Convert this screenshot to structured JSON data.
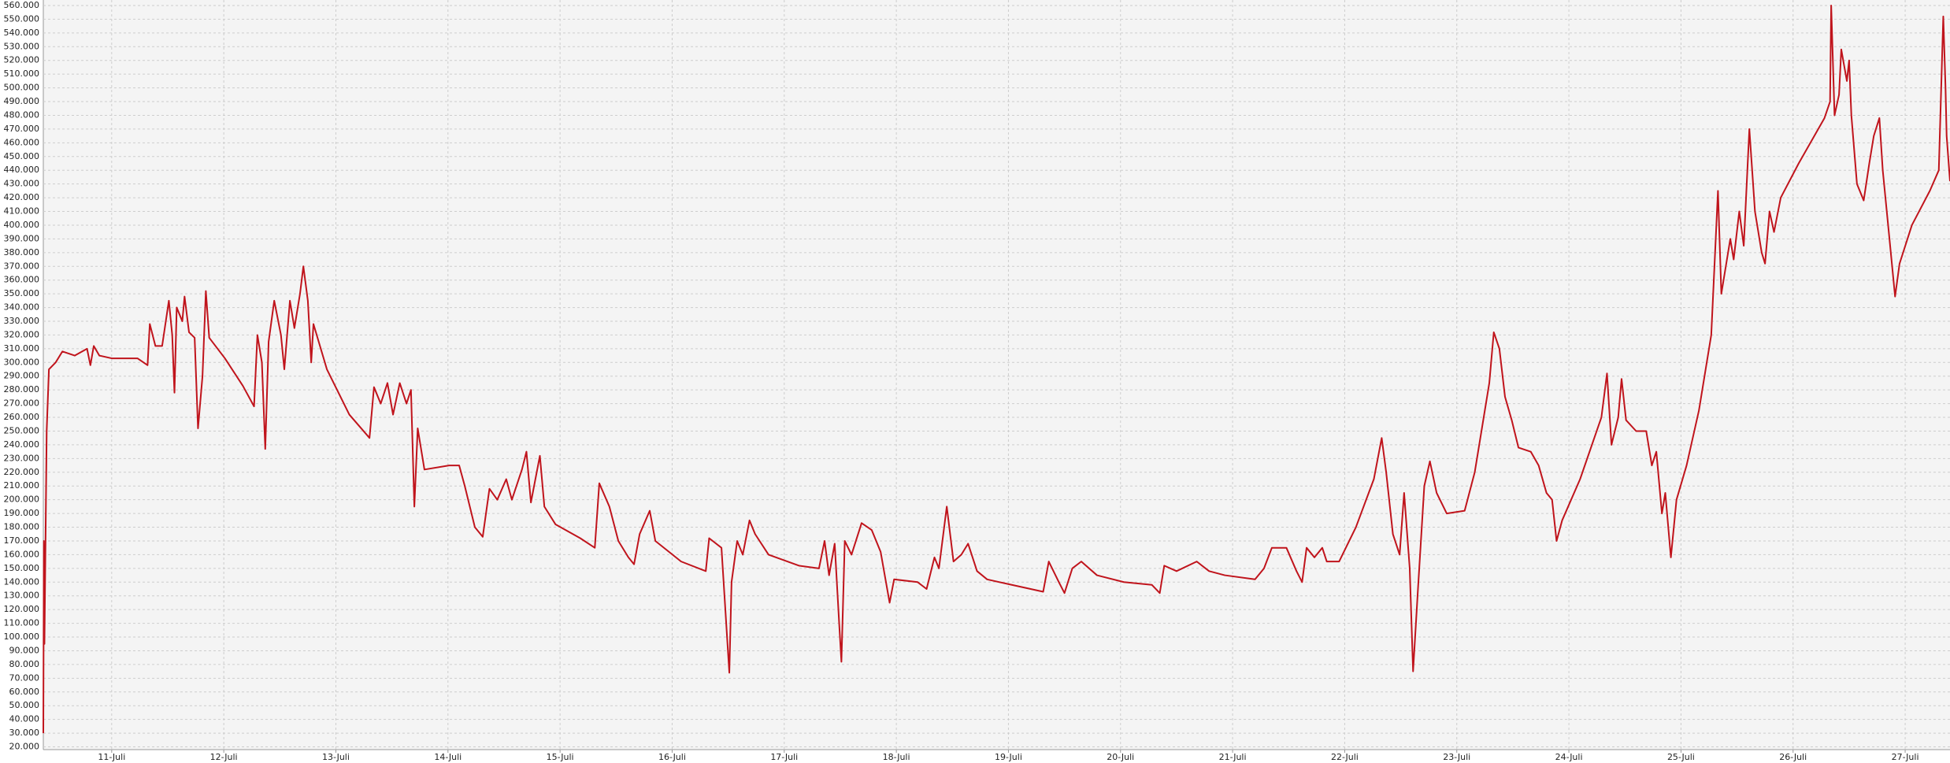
{
  "chart_data": {
    "type": "line",
    "color": "#c0141c",
    "grid": true,
    "xlim": [
      10.39,
      27.4
    ],
    "ylim": [
      18000,
      564000
    ],
    "xticks": [
      {
        "value": 11,
        "label": "11-Juli"
      },
      {
        "value": 12,
        "label": "12-Juli"
      },
      {
        "value": 13,
        "label": "13-Juli"
      },
      {
        "value": 14,
        "label": "14-Juli"
      },
      {
        "value": 15,
        "label": "15-Juli"
      },
      {
        "value": 16,
        "label": "16-Juli"
      },
      {
        "value": 17,
        "label": "17-Juli"
      },
      {
        "value": 18,
        "label": "18-Juli"
      },
      {
        "value": 19,
        "label": "19-Juli"
      },
      {
        "value": 20,
        "label": "20-Juli"
      },
      {
        "value": 21,
        "label": "21-Juli"
      },
      {
        "value": 22,
        "label": "22-Juli"
      },
      {
        "value": 23,
        "label": "23-Juli"
      },
      {
        "value": 24,
        "label": "24-Juli"
      },
      {
        "value": 25,
        "label": "25-Juli"
      },
      {
        "value": 26,
        "label": "26-Juli"
      },
      {
        "value": 27,
        "label": "27-Juli"
      }
    ],
    "yticks": [
      {
        "value": 20000,
        "label": "20.000"
      },
      {
        "value": 30000,
        "label": "30.000"
      },
      {
        "value": 40000,
        "label": "40.000"
      },
      {
        "value": 50000,
        "label": "50.000"
      },
      {
        "value": 60000,
        "label": "60.000"
      },
      {
        "value": 70000,
        "label": "70.000"
      },
      {
        "value": 80000,
        "label": "80.000"
      },
      {
        "value": 90000,
        "label": "90.000"
      },
      {
        "value": 100000,
        "label": "100.000"
      },
      {
        "value": 110000,
        "label": "110.000"
      },
      {
        "value": 120000,
        "label": "120.000"
      },
      {
        "value": 130000,
        "label": "130.000"
      },
      {
        "value": 140000,
        "label": "140.000"
      },
      {
        "value": 150000,
        "label": "150.000"
      },
      {
        "value": 160000,
        "label": "160.000"
      },
      {
        "value": 170000,
        "label": "170.000"
      },
      {
        "value": 180000,
        "label": "180.000"
      },
      {
        "value": 190000,
        "label": "190.000"
      },
      {
        "value": 200000,
        "label": "200.000"
      },
      {
        "value": 210000,
        "label": "210.000"
      },
      {
        "value": 220000,
        "label": "220.000"
      },
      {
        "value": 230000,
        "label": "230.000"
      },
      {
        "value": 240000,
        "label": "240.000"
      },
      {
        "value": 250000,
        "label": "250.000"
      },
      {
        "value": 260000,
        "label": "260.000"
      },
      {
        "value": 270000,
        "label": "270.000"
      },
      {
        "value": 280000,
        "label": "280.000"
      },
      {
        "value": 290000,
        "label": "290.000"
      },
      {
        "value": 300000,
        "label": "300.000"
      },
      {
        "value": 310000,
        "label": "310.000"
      },
      {
        "value": 320000,
        "label": "320.000"
      },
      {
        "value": 330000,
        "label": "330.000"
      },
      {
        "value": 340000,
        "label": "340.000"
      },
      {
        "value": 350000,
        "label": "350.000"
      },
      {
        "value": 360000,
        "label": "360.000"
      },
      {
        "value": 370000,
        "label": "370.000"
      },
      {
        "value": 380000,
        "label": "380.000"
      },
      {
        "value": 390000,
        "label": "390.000"
      },
      {
        "value": 400000,
        "label": "400.000"
      },
      {
        "value": 410000,
        "label": "410.000"
      },
      {
        "value": 420000,
        "label": "420.000"
      },
      {
        "value": 430000,
        "label": "430.000"
      },
      {
        "value": 440000,
        "label": "440.000"
      },
      {
        "value": 450000,
        "label": "450.000"
      },
      {
        "value": 460000,
        "label": "460.000"
      },
      {
        "value": 470000,
        "label": "470.000"
      },
      {
        "value": 480000,
        "label": "480.000"
      },
      {
        "value": 490000,
        "label": "490.000"
      },
      {
        "value": 500000,
        "label": "500.000"
      },
      {
        "value": 510000,
        "label": "510.000"
      },
      {
        "value": 520000,
        "label": "520.000"
      },
      {
        "value": 530000,
        "label": "530.000"
      },
      {
        "value": 540000,
        "label": "540.000"
      },
      {
        "value": 550000,
        "label": "550.000"
      },
      {
        "value": 560000,
        "label": "560.000"
      }
    ],
    "x": [
      10.39,
      10.395,
      10.4,
      10.42,
      10.44,
      10.5,
      10.56,
      10.67,
      10.78,
      10.81,
      10.84,
      10.89,
      11.0,
      11.23,
      11.32,
      11.34,
      11.39,
      11.45,
      11.51,
      11.54,
      11.56,
      11.58,
      11.63,
      11.65,
      11.69,
      11.74,
      11.77,
      11.81,
      11.84,
      11.87,
      12.01,
      12.17,
      12.27,
      12.3,
      12.34,
      12.37,
      12.4,
      12.45,
      12.51,
      12.54,
      12.59,
      12.63,
      12.68,
      12.71,
      12.75,
      12.78,
      12.8,
      12.92,
      13.12,
      13.3,
      13.34,
      13.4,
      13.46,
      13.51,
      13.57,
      13.63,
      13.67,
      13.7,
      13.73,
      13.79,
      14.01,
      14.1,
      14.15,
      14.24,
      14.31,
      14.37,
      14.44,
      14.52,
      14.57,
      14.66,
      14.7,
      14.74,
      14.82,
      14.86,
      14.96,
      15.18,
      15.31,
      15.35,
      15.44,
      15.52,
      15.61,
      15.66,
      15.71,
      15.8,
      15.85,
      16.08,
      16.3,
      16.33,
      16.44,
      16.49,
      16.51,
      16.53,
      16.58,
      16.63,
      16.69,
      16.74,
      16.86,
      17.13,
      17.31,
      17.36,
      17.4,
      17.45,
      17.49,
      17.51,
      17.54,
      17.6,
      17.69,
      17.78,
      17.86,
      17.94,
      17.98,
      18.19,
      18.27,
      18.34,
      18.38,
      18.45,
      18.51,
      18.58,
      18.64,
      18.72,
      18.81,
      19.03,
      19.31,
      19.36,
      19.45,
      19.5,
      19.57,
      19.65,
      19.79,
      20.03,
      20.28,
      20.35,
      20.39,
      20.5,
      20.68,
      20.79,
      20.93,
      21.2,
      21.28,
      21.35,
      21.48,
      21.57,
      21.62,
      21.66,
      21.73,
      21.8,
      21.84,
      21.95,
      22.1,
      22.26,
      22.33,
      22.37,
      22.43,
      22.49,
      22.53,
      22.58,
      22.61,
      22.65,
      22.71,
      22.76,
      22.82,
      22.91,
      23.07,
      23.16,
      23.24,
      23.29,
      23.33,
      23.38,
      23.43,
      23.49,
      23.55,
      23.66,
      23.73,
      23.8,
      23.85,
      23.89,
      23.94,
      24.1,
      24.29,
      24.34,
      24.38,
      24.44,
      24.47,
      24.51,
      24.6,
      24.69,
      24.74,
      24.78,
      24.83,
      24.86,
      24.91,
      24.96,
      25.05,
      25.16,
      25.27,
      25.33,
      25.36,
      25.44,
      25.47,
      25.52,
      25.56,
      25.61,
      25.66,
      25.72,
      25.75,
      25.79,
      25.83,
      25.89,
      26.05,
      26.28,
      26.33,
      26.34,
      26.37,
      26.41,
      26.43,
      26.48,
      26.5,
      26.52,
      26.57,
      26.63,
      26.68,
      26.72,
      26.77,
      26.8,
      26.86,
      26.91,
      26.95,
      27.06,
      27.22,
      27.3,
      27.34,
      27.36,
      27.37,
      27.4
    ],
    "values": [
      30000,
      170000,
      95000,
      250000,
      295000,
      300000,
      308000,
      305000,
      310000,
      298000,
      312000,
      305000,
      303000,
      303000,
      298000,
      328000,
      312000,
      312000,
      345000,
      320000,
      278000,
      340000,
      330000,
      348000,
      322000,
      318000,
      252000,
      290000,
      352000,
      318000,
      303000,
      283000,
      268000,
      320000,
      300000,
      237000,
      315000,
      345000,
      320000,
      295000,
      345000,
      325000,
      350000,
      370000,
      345000,
      300000,
      328000,
      295000,
      262000,
      245000,
      282000,
      270000,
      285000,
      262000,
      285000,
      270000,
      280000,
      195000,
      252000,
      222000,
      225000,
      225000,
      210000,
      180000,
      173000,
      208000,
      200000,
      215000,
      200000,
      222000,
      235000,
      198000,
      232000,
      195000,
      182000,
      172000,
      165000,
      212000,
      195000,
      170000,
      158000,
      153000,
      175000,
      192000,
      170000,
      155000,
      148000,
      172000,
      165000,
      100000,
      74000,
      140000,
      170000,
      160000,
      185000,
      175000,
      160000,
      152000,
      150000,
      170000,
      145000,
      168000,
      110000,
      82000,
      170000,
      160000,
      183000,
      178000,
      162000,
      125000,
      142000,
      140000,
      135000,
      158000,
      150000,
      195000,
      155000,
      160000,
      168000,
      148000,
      142000,
      138000,
      133000,
      155000,
      140000,
      132000,
      150000,
      155000,
      145000,
      140000,
      138000,
      132000,
      152000,
      148000,
      155000,
      148000,
      145000,
      142000,
      150000,
      165000,
      165000,
      148000,
      140000,
      165000,
      158000,
      165000,
      155000,
      155000,
      180000,
      215000,
      245000,
      220000,
      175000,
      160000,
      205000,
      150000,
      75000,
      130000,
      210000,
      228000,
      205000,
      190000,
      192000,
      220000,
      260000,
      285000,
      322000,
      310000,
      275000,
      258000,
      238000,
      235000,
      225000,
      205000,
      200000,
      170000,
      185000,
      215000,
      260000,
      292000,
      240000,
      260000,
      288000,
      258000,
      250000,
      250000,
      225000,
      235000,
      190000,
      205000,
      158000,
      200000,
      225000,
      265000,
      320000,
      425000,
      350000,
      390000,
      375000,
      410000,
      385000,
      470000,
      410000,
      380000,
      372000,
      410000,
      395000,
      420000,
      445000,
      478000,
      490000,
      560000,
      480000,
      495000,
      528000,
      505000,
      520000,
      480000,
      430000,
      418000,
      445000,
      465000,
      478000,
      440000,
      390000,
      348000,
      372000,
      400000,
      425000,
      440000,
      552000,
      500000,
      465000,
      432000
    ]
  }
}
